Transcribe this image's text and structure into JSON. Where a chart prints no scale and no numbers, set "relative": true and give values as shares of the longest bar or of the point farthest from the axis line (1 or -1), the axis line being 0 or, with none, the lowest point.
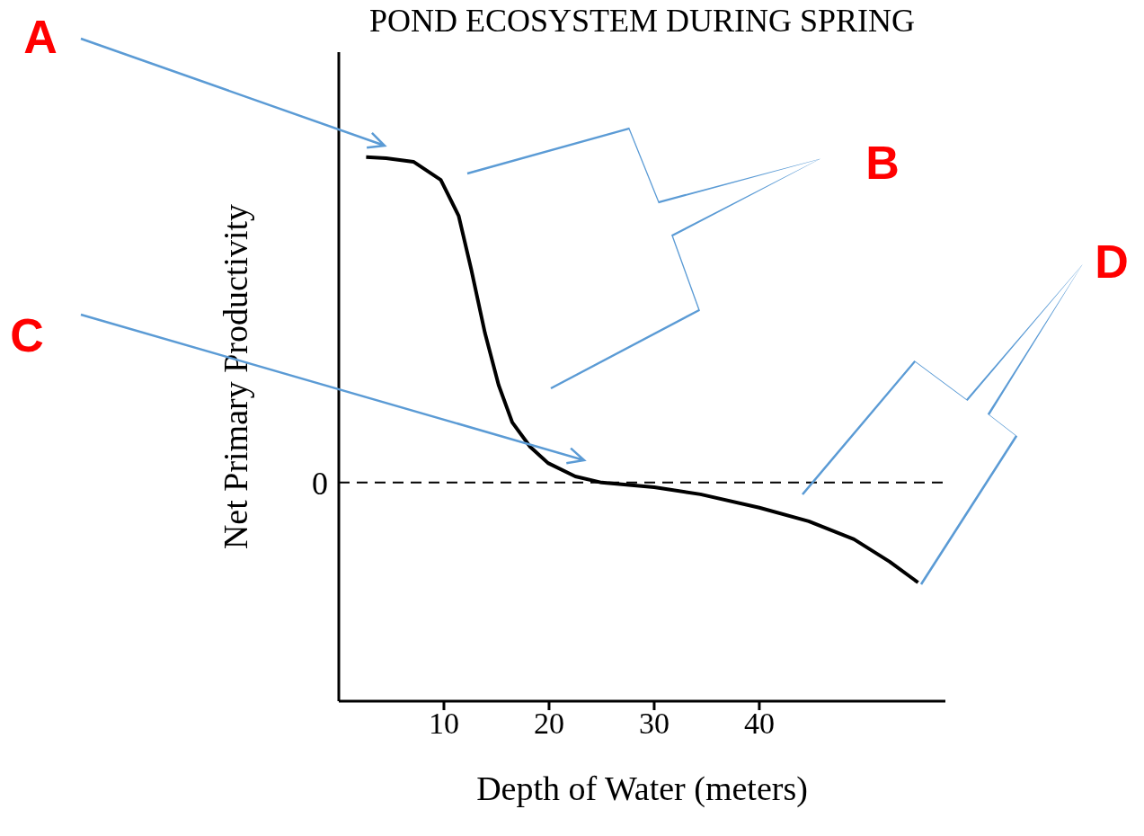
{
  "chart_data": {
    "type": "line",
    "title": "POND ECOSYSTEM DURING SPRING",
    "xlabel": "Depth of Water (meters)",
    "ylabel": "Net Primary Productivity",
    "relative": true,
    "x": [
      2.6,
      4.5,
      7.1,
      9.7,
      11.4,
      12.6,
      13.9,
      15.2,
      16.5,
      18.2,
      19.9,
      22.5,
      25,
      30,
      34.4,
      40,
      44.7,
      49,
      52.4,
      55.1
    ],
    "series": [
      {
        "color": "#000000",
        "values": [
          1,
          0.997,
          0.986,
          0.93,
          0.82,
          0.655,
          0.46,
          0.3,
          0.185,
          0.11,
          0.06,
          0.019,
          0,
          -0.014,
          -0.036,
          -0.077,
          -0.119,
          -0.174,
          -0.243,
          -0.307
        ]
      }
    ],
    "xlim": [
      0,
      57.7
    ],
    "xticks": [
      10,
      20,
      30,
      40
    ],
    "ref_lines": [
      {
        "axis": "y",
        "value": 0,
        "label": "0",
        "line_style": "dashed",
        "color": "#000000"
      }
    ],
    "annotations": [
      "A",
      "B",
      "C",
      "D"
    ],
    "grid": false,
    "legend": false,
    "marker": "none",
    "line_style": "solid"
  }
}
